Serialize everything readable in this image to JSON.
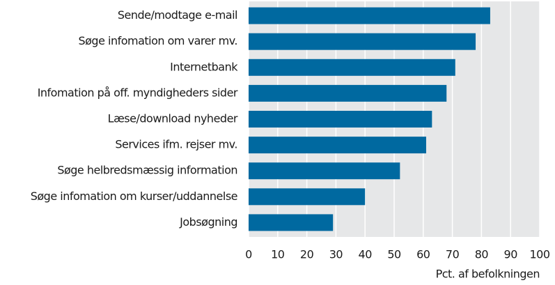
{
  "chart_data": {
    "type": "bar",
    "orientation": "horizontal",
    "categories": [
      "Sende/modtage e-mail",
      "Søge infomation om varer mv.",
      "Internetbank",
      "Infomation på off. myndigheders sider",
      "Læse/download nyheder",
      "Services ifm. rejser mv.",
      "Søge helbredsmæssig information",
      "Søge infomation om kurser/uddannelse",
      "Jobsøgning"
    ],
    "values": [
      83,
      78,
      71,
      68,
      63,
      61,
      52,
      40,
      29
    ],
    "color": "#0069a0",
    "xlabel": "Pct. af befolkningen",
    "xlim": [
      0,
      100
    ],
    "xticks": [
      0,
      10,
      20,
      30,
      40,
      50,
      60,
      70,
      80,
      90,
      100
    ],
    "grid": true
  }
}
